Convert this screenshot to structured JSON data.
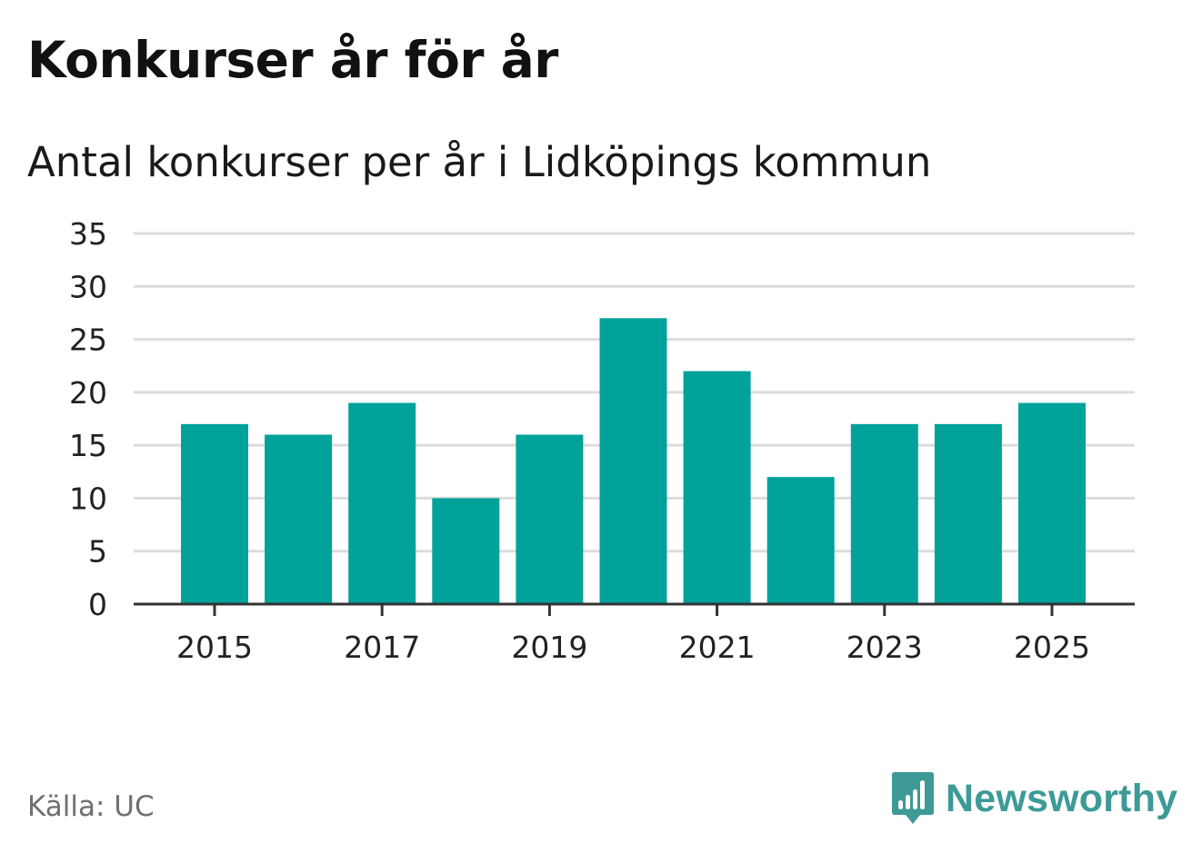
{
  "header": {
    "title": "Konkurser år för år",
    "subtitle": "Antal konkurser per år i Lidköpings kommun"
  },
  "footer": {
    "source": "Källa: UC",
    "brand": "Newsworthy",
    "brand_icon": "bar-chart-speech-bubble-icon"
  },
  "colors": {
    "bar": "#00a29a",
    "brand": "#3d9a96",
    "grid": "#dcdcdc",
    "axis": "#333333",
    "tick_text": "#222222"
  },
  "chart_data": {
    "type": "bar",
    "title": "Konkurser år för år",
    "subtitle": "Antal konkurser per år i Lidköpings kommun",
    "xlabel": "",
    "ylabel": "",
    "categories": [
      "2015",
      "2016",
      "2017",
      "2018",
      "2019",
      "2020",
      "2021",
      "2022",
      "2023",
      "2024",
      "2025"
    ],
    "values": [
      17,
      16,
      19,
      10,
      16,
      27,
      22,
      12,
      17,
      17,
      19
    ],
    "x_tick_labels": [
      "2015",
      "2017",
      "2019",
      "2021",
      "2023",
      "2025"
    ],
    "ylim": [
      0,
      35
    ],
    "y_ticks": [
      0,
      5,
      10,
      15,
      20,
      25,
      30,
      35
    ],
    "grid": true,
    "legend": "none"
  }
}
